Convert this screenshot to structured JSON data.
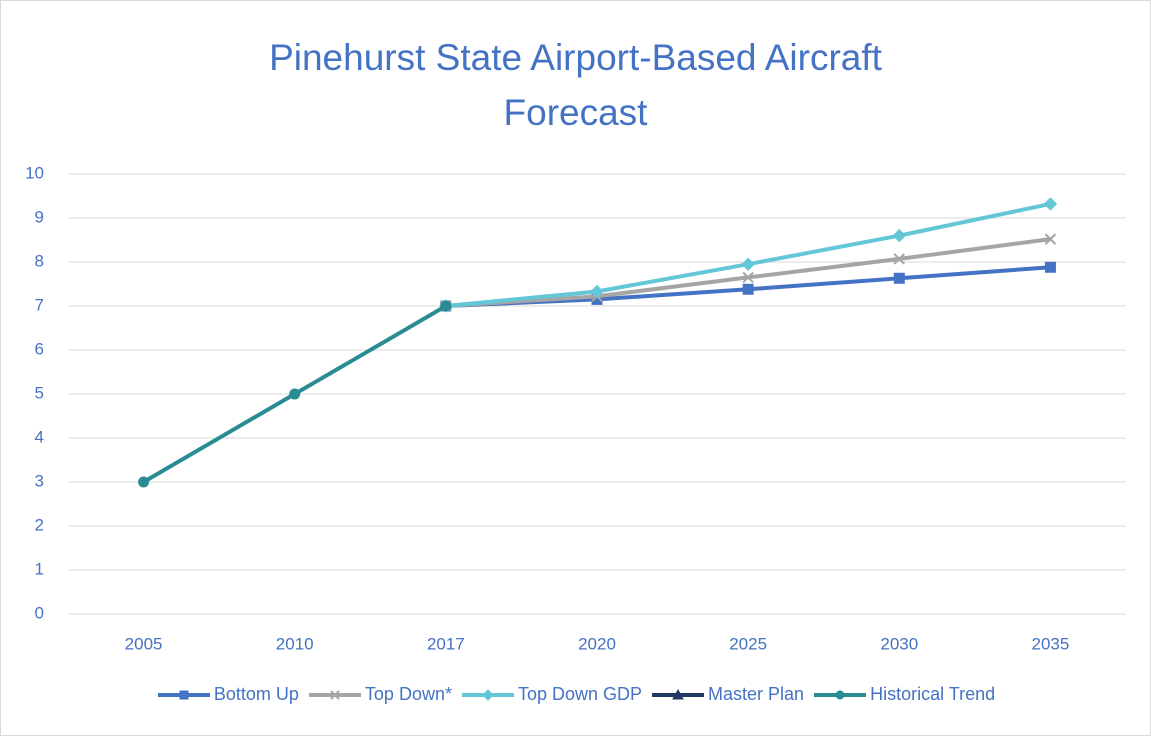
{
  "chart_data": {
    "type": "line",
    "title": "Pinehurst State Airport-Based Aircraft Forecast",
    "categories": [
      "2005",
      "2010",
      "2017",
      "2020",
      "2025",
      "2030",
      "2035"
    ],
    "series": [
      {
        "name": "Bottom Up",
        "color": "#4472c4",
        "marker": "square",
        "values": [
          null,
          null,
          7,
          7.15,
          7.38,
          7.63,
          7.88
        ]
      },
      {
        "name": "Top Down*",
        "color": "#a5a5a5",
        "marker": "x",
        "values": [
          null,
          null,
          7,
          7.22,
          7.65,
          8.07,
          8.52
        ]
      },
      {
        "name": "Top Down GDP",
        "color": "#63c7d7",
        "marker": "diamond",
        "values": [
          null,
          null,
          7,
          7.33,
          7.95,
          8.6,
          9.32
        ]
      },
      {
        "name": "Master Plan",
        "color": "#1f3864",
        "marker": "triangle",
        "values": [
          null,
          null,
          null,
          null,
          null,
          null,
          null
        ]
      },
      {
        "name": "Historical Trend",
        "color": "#2a8c93",
        "marker": "circle",
        "values": [
          3,
          5,
          7,
          null,
          null,
          null,
          null
        ]
      }
    ],
    "ylim": [
      0,
      10
    ],
    "yticks": [
      0,
      1,
      2,
      3,
      4,
      5,
      6,
      7,
      8,
      9,
      10
    ],
    "grid": true,
    "legend": "bottom"
  }
}
